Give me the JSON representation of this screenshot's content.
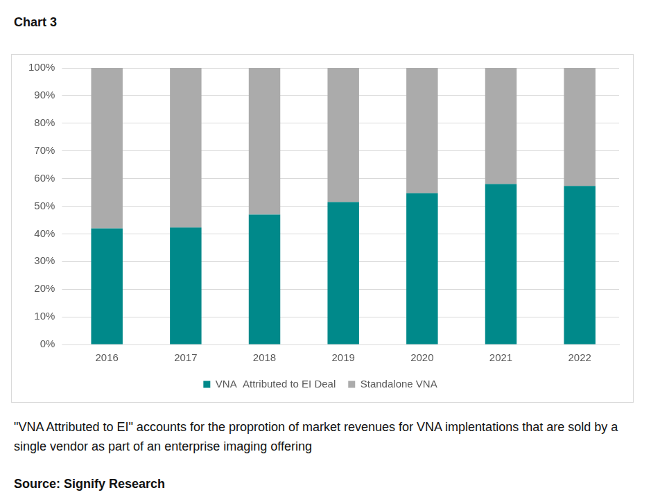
{
  "chart_data": {
    "type": "bar",
    "title": "Chart 3",
    "caption": "\"VNA Attributed to EI\" accounts for the proprotion of market revenues for VNA implentations that are sold by a single vendor as part of an enterprise imaging offering",
    "source": "Source: Signify Research",
    "categories": [
      "2016",
      "2017",
      "2018",
      "2019",
      "2020",
      "2021",
      "2022"
    ],
    "series": [
      {
        "name": "VNA  Attributed to EI Deal",
        "color": "#00898a",
        "values": [
          42,
          42.3,
          47,
          51.5,
          54.7,
          58,
          57.3
        ]
      },
      {
        "name": "Standalone VNA",
        "color": "#ababab",
        "values": [
          58,
          57.7,
          53,
          48.5,
          45.3,
          42,
          42.7
        ]
      }
    ],
    "stacked": true,
    "ylim": [
      0,
      100
    ],
    "yticks": [
      {
        "value": 0,
        "label": "0%"
      },
      {
        "value": 10,
        "label": "10%"
      },
      {
        "value": 20,
        "label": "20%"
      },
      {
        "value": 30,
        "label": "30%"
      },
      {
        "value": 40,
        "label": "40%"
      },
      {
        "value": 50,
        "label": "50%"
      },
      {
        "value": 60,
        "label": "60%"
      },
      {
        "value": 70,
        "label": "70%"
      },
      {
        "value": 80,
        "label": "80%"
      },
      {
        "value": 90,
        "label": "90%"
      },
      {
        "value": 100,
        "label": "100%"
      }
    ],
    "grid": true,
    "legend": "bottom"
  }
}
